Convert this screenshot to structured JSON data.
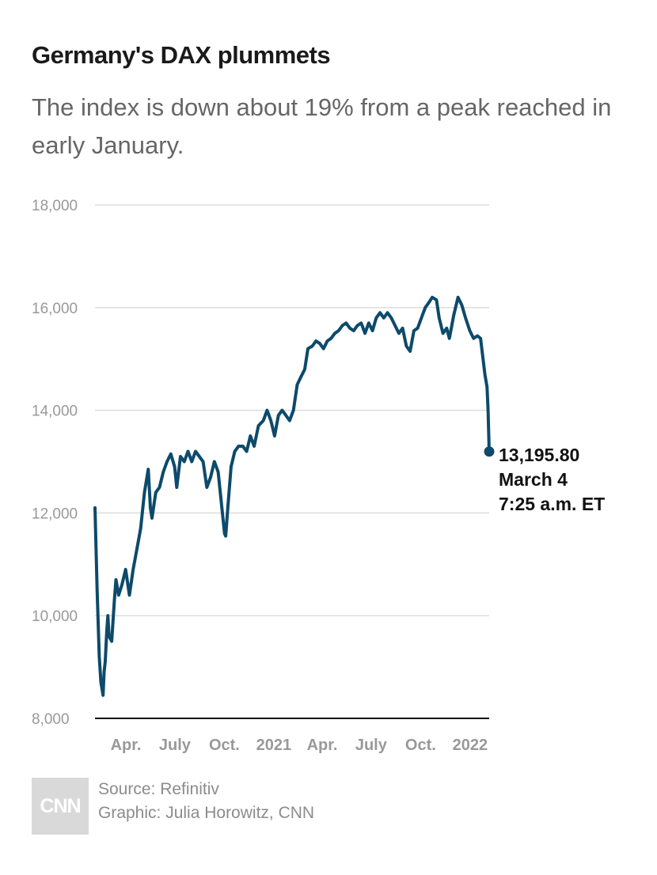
{
  "header": {
    "title": "Germany's DAX plummets",
    "subtitle": "The index is down about 19% from a peak reached in early January."
  },
  "footer": {
    "logo_text": "CNN",
    "source": "Source: Refinitiv",
    "credit": "Graphic: Julia Horowitz, CNN"
  },
  "colors": {
    "line": "#0d4a6b",
    "grid": "#dddddd",
    "axis": "#111111",
    "tick_text": "#999999"
  },
  "chart_data": {
    "type": "line",
    "title": "Germany's DAX plummets",
    "subtitle": "The index is down about 19% from a peak reached in early January.",
    "xlabel": "",
    "ylabel": "",
    "ylim": [
      8000,
      18000
    ],
    "yticks": [
      8000,
      10000,
      12000,
      14000,
      16000,
      18000
    ],
    "ytick_labels": [
      "8,000",
      "10,000",
      "12,000",
      "14,000",
      "16,000",
      "18,000"
    ],
    "xlim": [
      "2020-03-01",
      "2022-03-04"
    ],
    "xticks": [
      {
        "date": "2020-04-01",
        "label": "Apr."
      },
      {
        "date": "2020-07-01",
        "label": "July"
      },
      {
        "date": "2020-10-01",
        "label": "Oct."
      },
      {
        "date": "2021-01-01",
        "label": "2021"
      },
      {
        "date": "2021-04-01",
        "label": "Apr."
      },
      {
        "date": "2021-07-01",
        "label": "July"
      },
      {
        "date": "2021-10-01",
        "label": "Oct."
      },
      {
        "date": "2022-01-01",
        "label": "2022"
      }
    ],
    "grid": true,
    "legend": "none",
    "series": [
      {
        "x": [
          "2020-03-01",
          "2020-03-05",
          "2020-03-09",
          "2020-03-12",
          "2020-03-16",
          "2020-03-18",
          "2020-03-20",
          "2020-03-23",
          "2020-03-25",
          "2020-03-27",
          "2020-04-01",
          "2020-04-06",
          "2020-04-09",
          "2020-04-14",
          "2020-04-20",
          "2020-04-27",
          "2020-05-04",
          "2020-05-11",
          "2020-05-18",
          "2020-05-25",
          "2020-06-01",
          "2020-06-08",
          "2020-06-12",
          "2020-06-15",
          "2020-06-22",
          "2020-06-29",
          "2020-07-06",
          "2020-07-13",
          "2020-07-20",
          "2020-07-27",
          "2020-07-31",
          "2020-08-07",
          "2020-08-14",
          "2020-08-21",
          "2020-08-28",
          "2020-09-04",
          "2020-09-11",
          "2020-09-18",
          "2020-09-25",
          "2020-10-02",
          "2020-10-09",
          "2020-10-16",
          "2020-10-23",
          "2020-10-28",
          "2020-10-30",
          "2020-11-03",
          "2020-11-09",
          "2020-11-16",
          "2020-11-23",
          "2020-12-01",
          "2020-12-08",
          "2020-12-15",
          "2020-12-22",
          "2020-12-30",
          "2021-01-08",
          "2021-01-15",
          "2021-01-22",
          "2021-01-29",
          "2021-02-05",
          "2021-02-12",
          "2021-02-19",
          "2021-02-26",
          "2021-03-05",
          "2021-03-12",
          "2021-03-19",
          "2021-03-26",
          "2021-04-01",
          "2021-04-09",
          "2021-04-16",
          "2021-04-23",
          "2021-04-30",
          "2021-05-07",
          "2021-05-14",
          "2021-05-21",
          "2021-05-28",
          "2021-06-04",
          "2021-06-11",
          "2021-06-18",
          "2021-06-25",
          "2021-07-02",
          "2021-07-09",
          "2021-07-16",
          "2021-07-23",
          "2021-07-30",
          "2021-08-06",
          "2021-08-13",
          "2021-08-20",
          "2021-08-27",
          "2021-09-03",
          "2021-09-10",
          "2021-09-17",
          "2021-09-24",
          "2021-10-01",
          "2021-10-08",
          "2021-10-15",
          "2021-10-22",
          "2021-10-29",
          "2021-11-05",
          "2021-11-12",
          "2021-11-18",
          "2021-11-26",
          "2021-12-01",
          "2021-12-08",
          "2021-12-15",
          "2021-12-20",
          "2021-12-28",
          "2022-01-05",
          "2022-01-12",
          "2022-01-19",
          "2022-01-27",
          "2022-02-03",
          "2022-02-10",
          "2022-02-16",
          "2022-02-24",
          "2022-02-28",
          "2022-03-02",
          "2022-03-04"
        ],
        "values": [
          12100,
          10500,
          9200,
          8700,
          8450,
          8900,
          9100,
          9700,
          10000,
          9600,
          9500,
          10300,
          10700,
          10400,
          10600,
          10900,
          10400,
          10900,
          11300,
          11700,
          12400,
          12850,
          12100,
          11900,
          12400,
          12500,
          12800,
          13000,
          13150,
          12900,
          12500,
          13100,
          13000,
          13200,
          13000,
          13200,
          13100,
          13000,
          12500,
          12700,
          13000,
          12800,
          12100,
          11600,
          11550,
          12100,
          12900,
          13200,
          13300,
          13300,
          13200,
          13500,
          13300,
          13700,
          13800,
          14000,
          13800,
          13500,
          13900,
          14000,
          13900,
          13800,
          14000,
          14500,
          14650,
          14800,
          15200,
          15250,
          15350,
          15300,
          15200,
          15350,
          15400,
          15500,
          15550,
          15650,
          15700,
          15600,
          15550,
          15650,
          15700,
          15500,
          15700,
          15550,
          15800,
          15900,
          15800,
          15900,
          15800,
          15650,
          15500,
          15600,
          15250,
          15150,
          15550,
          15600,
          15800,
          16000,
          16100,
          16200,
          16150,
          15800,
          15500,
          15600,
          15400,
          15850,
          16200,
          16050,
          15800,
          15550,
          15400,
          15450,
          15400,
          14700,
          14450,
          14000,
          13195.8
        ]
      }
    ],
    "annotation": {
      "value": "13,195.80",
      "date": "March 4",
      "time": "7:25 a.m. ET"
    }
  }
}
